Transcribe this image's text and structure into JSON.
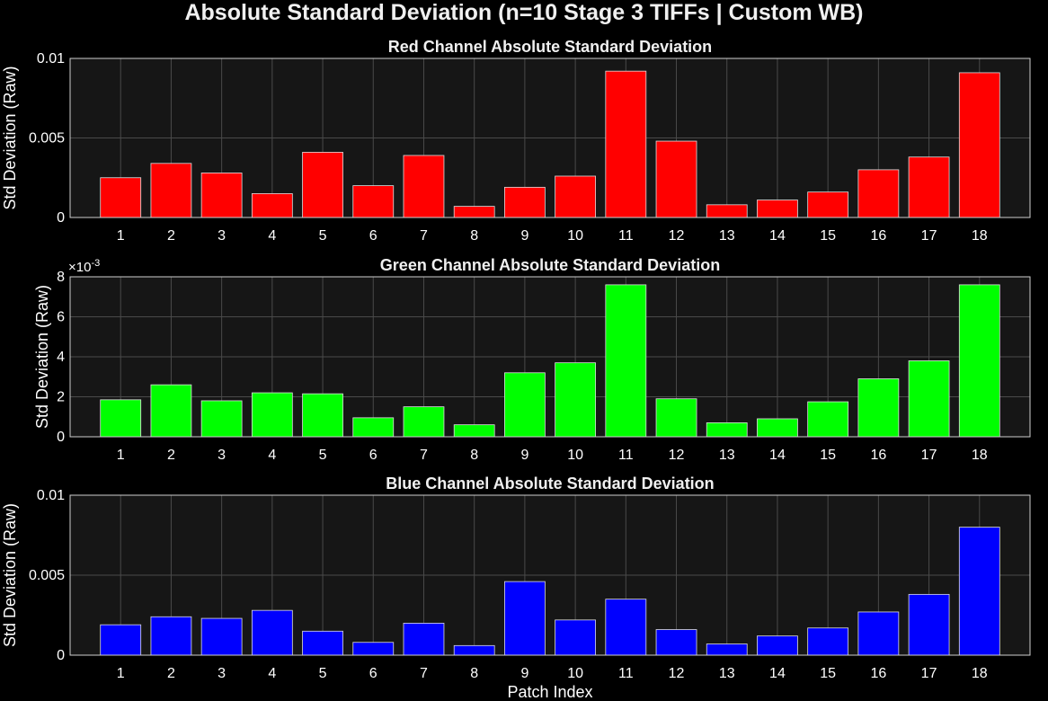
{
  "figure_title": "Absolute Standard Deviation (n=10 Stage 3 TIFFs | Custom WB)",
  "chart_data": [
    {
      "type": "bar",
      "title": "Red Channel Absolute Standard Deviation",
      "xlabel": "",
      "ylabel": "Std Deviation (Raw)",
      "categories": [
        "1",
        "2",
        "3",
        "4",
        "5",
        "6",
        "7",
        "8",
        "9",
        "10",
        "11",
        "12",
        "13",
        "14",
        "15",
        "16",
        "17",
        "18"
      ],
      "values": [
        0.0025,
        0.0034,
        0.0028,
        0.0015,
        0.0041,
        0.002,
        0.0039,
        0.0007,
        0.0019,
        0.0026,
        0.0092,
        0.0048,
        0.0008,
        0.0011,
        0.0016,
        0.003,
        0.0038,
        0.0091
      ],
      "ylim": [
        0,
        0.01
      ],
      "yticks": [
        0,
        0.005,
        0.01
      ],
      "ytick_labels": [
        "0",
        "0.005",
        "0.01"
      ],
      "exponent_label": "",
      "color": "#ff0000",
      "grid": true
    },
    {
      "type": "bar",
      "title": "Green Channel Absolute Standard Deviation",
      "xlabel": "",
      "ylabel": "Std Deviation (Raw)",
      "categories": [
        "1",
        "2",
        "3",
        "4",
        "5",
        "6",
        "7",
        "8",
        "9",
        "10",
        "11",
        "12",
        "13",
        "14",
        "15",
        "16",
        "17",
        "18"
      ],
      "values": [
        0.00185,
        0.0026,
        0.0018,
        0.0022,
        0.00215,
        0.00095,
        0.0015,
        0.0006,
        0.0032,
        0.0037,
        0.0076,
        0.0019,
        0.0007,
        0.0009,
        0.00175,
        0.0029,
        0.0038,
        0.0076
      ],
      "ylim": [
        0,
        0.008
      ],
      "yticks": [
        0,
        0.002,
        0.004,
        0.006,
        0.008
      ],
      "ytick_labels": [
        "0",
        "2",
        "4",
        "6",
        "8"
      ],
      "exponent_label": "×10",
      "exponent_power": "-3",
      "color": "#00ff00",
      "grid": true
    },
    {
      "type": "bar",
      "title": "Blue Channel Absolute Standard Deviation",
      "xlabel": "Patch Index",
      "ylabel": "Std Deviation (Raw)",
      "categories": [
        "1",
        "2",
        "3",
        "4",
        "5",
        "6",
        "7",
        "8",
        "9",
        "10",
        "11",
        "12",
        "13",
        "14",
        "15",
        "16",
        "17",
        "18"
      ],
      "values": [
        0.0019,
        0.0024,
        0.0023,
        0.0028,
        0.0015,
        0.0008,
        0.002,
        0.0006,
        0.0046,
        0.0022,
        0.0035,
        0.0016,
        0.0007,
        0.0012,
        0.0017,
        0.0027,
        0.0038,
        0.008
      ],
      "ylim": [
        0,
        0.01
      ],
      "yticks": [
        0,
        0.005,
        0.01
      ],
      "ytick_labels": [
        "0",
        "0.005",
        "0.01"
      ],
      "exponent_label": "",
      "color": "#0000ff",
      "grid": true
    }
  ]
}
